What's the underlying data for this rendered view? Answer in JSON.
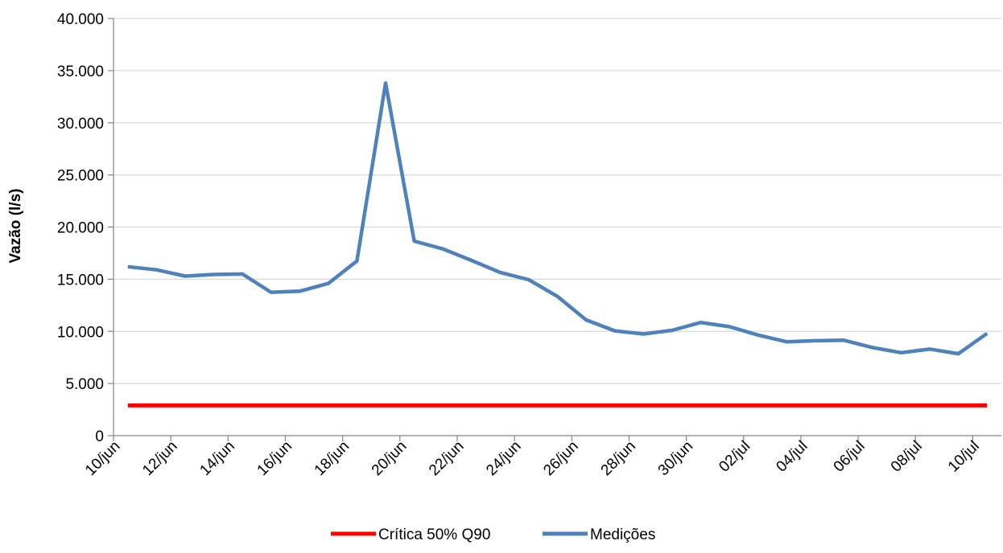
{
  "chart_data": {
    "type": "line",
    "title": "",
    "xlabel": "",
    "ylabel": "Vazão (l/s)",
    "ylim": [
      0,
      40000
    ],
    "y_ticks": [
      0,
      5000,
      10000,
      15000,
      20000,
      25000,
      30000,
      35000,
      40000
    ],
    "y_tick_labels": [
      "0",
      "5.000",
      "10.000",
      "15.000",
      "20.000",
      "25.000",
      "30.000",
      "35.000",
      "40.000"
    ],
    "x_range": [
      "2021-06-10",
      "2021-07-11"
    ],
    "x_tick_labels": [
      "10/jun",
      "12/jun",
      "14/jun",
      "16/jun",
      "18/jun",
      "20/jun",
      "22/jun",
      "24/jun",
      "26/jun",
      "28/jun",
      "30/jun",
      "02/jul",
      "04/jul",
      "06/jul",
      "08/jul",
      "10/jul"
    ],
    "grid": "horizontal",
    "legend": "bottom",
    "series": [
      {
        "name": "Crítica 50% Q90",
        "color": "#ff0000",
        "x": [
          "2021-06-10.5",
          "2021-07-10.5"
        ],
        "y": [
          2900,
          2900
        ]
      },
      {
        "name": "Medições",
        "color": "#4f81bd",
        "x": [
          "2021-06-10.5",
          "2021-06-11.5",
          "2021-06-12.5",
          "2021-06-13.5",
          "2021-06-14.5",
          "2021-06-15.5",
          "2021-06-16.5",
          "2021-06-17.5",
          "2021-06-18.5",
          "2021-06-19.5",
          "2021-06-20.5",
          "2021-06-21.5",
          "2021-06-22.5",
          "2021-06-23.5",
          "2021-06-24.5",
          "2021-06-25.5",
          "2021-06-26.5",
          "2021-06-27.5",
          "2021-06-28.5",
          "2021-06-29.5",
          "2021-06-30.5",
          "2021-07-01.5",
          "2021-07-02.5",
          "2021-07-03.5",
          "2021-07-04.5",
          "2021-07-05.5",
          "2021-07-06.5",
          "2021-07-07.5",
          "2021-07-08.5",
          "2021-07-09.5",
          "2021-07-10.5"
        ],
        "y": [
          16200,
          15900,
          15300,
          15450,
          15500,
          13750,
          13850,
          14600,
          16750,
          33800,
          18650,
          17900,
          16800,
          15650,
          14950,
          13350,
          11100,
          10050,
          9750,
          10100,
          10850,
          10450,
          9650,
          9000,
          9100,
          9150,
          8450,
          7950,
          8300,
          7850,
          9800
        ]
      }
    ]
  }
}
